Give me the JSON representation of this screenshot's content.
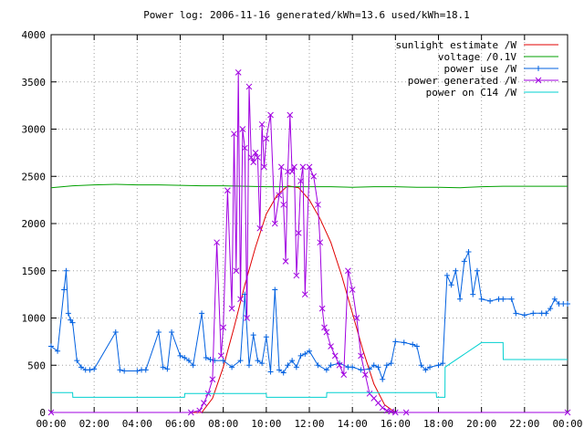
{
  "chart_data": {
    "type": "line",
    "title": "Power log: 2006-11-16 generated/kWh=13.6 used/kWh=18.1",
    "xlabel": "",
    "ylabel": "",
    "xlim": [
      0,
      24
    ],
    "ylim": [
      0,
      4000
    ],
    "x_ticks": [
      "00:00",
      "02:00",
      "04:00",
      "06:00",
      "08:00",
      "10:00",
      "12:00",
      "14:00",
      "16:00",
      "18:00",
      "20:00",
      "22:00",
      "00:00"
    ],
    "y_ticks": [
      "0",
      "500",
      "1000",
      "1500",
      "2000",
      "2500",
      "3000",
      "3500",
      "4000"
    ],
    "legend_position": "top-right",
    "grid": true,
    "series": [
      {
        "name": "sunlight estimate /W",
        "color": "#e00000",
        "marker": "none",
        "x": [
          0,
          7.0,
          7.5,
          8.0,
          8.5,
          9.0,
          9.5,
          10.0,
          10.5,
          11.0,
          11.5,
          12.0,
          12.5,
          13.0,
          13.5,
          14.0,
          14.5,
          15.0,
          15.5,
          16.0,
          24
        ],
        "y": [
          0,
          0,
          150,
          480,
          900,
          1350,
          1750,
          2100,
          2300,
          2400,
          2380,
          2250,
          2050,
          1800,
          1450,
          1050,
          650,
          300,
          80,
          0,
          0
        ]
      },
      {
        "name": "voltage /0.1V",
        "color": "#00a000",
        "marker": "none",
        "x": [
          0,
          1,
          2,
          3,
          4,
          5,
          6,
          7,
          8,
          9,
          10,
          11,
          12,
          13,
          14,
          15,
          16,
          17,
          18,
          19,
          20,
          21,
          22,
          23,
          24
        ],
        "y": [
          2380,
          2400,
          2410,
          2415,
          2410,
          2410,
          2405,
          2400,
          2400,
          2395,
          2390,
          2390,
          2390,
          2390,
          2385,
          2390,
          2390,
          2385,
          2385,
          2380,
          2390,
          2395,
          2395,
          2395,
          2395
        ]
      },
      {
        "name": "power use /W",
        "color": "#0060e0",
        "marker": "plus",
        "x": [
          0,
          0.3,
          0.6,
          0.7,
          0.8,
          0.9,
          1.0,
          1.2,
          1.4,
          1.6,
          1.8,
          2.0,
          3.0,
          3.2,
          3.4,
          4.0,
          4.2,
          4.4,
          5.0,
          5.2,
          5.4,
          5.6,
          6.0,
          6.2,
          6.4,
          6.6,
          7.0,
          7.2,
          7.4,
          7.6,
          8.0,
          8.4,
          8.8,
          9.0,
          9.2,
          9.4,
          9.6,
          9.8,
          10.0,
          10.2,
          10.4,
          10.6,
          10.8,
          11.0,
          11.2,
          11.4,
          11.6,
          11.8,
          12.0,
          12.4,
          12.8,
          13.0,
          13.4,
          13.8,
          14.0,
          14.4,
          14.8,
          15.0,
          15.2,
          15.4,
          15.6,
          15.8,
          16.0,
          16.4,
          16.8,
          17.0,
          17.2,
          17.4,
          17.6,
          18.0,
          18.2,
          18.4,
          18.6,
          18.8,
          19.0,
          19.2,
          19.4,
          19.6,
          19.8,
          20.0,
          20.4,
          20.8,
          21.0,
          21.4,
          21.6,
          22.0,
          22.4,
          22.8,
          23.0,
          23.2,
          23.4,
          23.6,
          23.8,
          24.0
        ],
        "y": [
          700,
          650,
          1300,
          1500,
          1050,
          980,
          950,
          550,
          480,
          450,
          450,
          460,
          850,
          450,
          440,
          440,
          450,
          450,
          850,
          480,
          460,
          850,
          600,
          580,
          550,
          500,
          1050,
          580,
          560,
          550,
          550,
          480,
          550,
          1250,
          500,
          820,
          550,
          520,
          800,
          430,
          1300,
          450,
          420,
          500,
          550,
          480,
          600,
          620,
          650,
          500,
          450,
          500,
          520,
          480,
          480,
          450,
          460,
          500,
          480,
          350,
          500,
          520,
          750,
          740,
          720,
          700,
          500,
          450,
          480,
          500,
          520,
          1450,
          1350,
          1500,
          1200,
          1600,
          1700,
          1250,
          1500,
          1200,
          1180,
          1200,
          1200,
          1200,
          1050,
          1030,
          1050,
          1050,
          1050,
          1100,
          1200,
          1150,
          1150,
          1150
        ]
      },
      {
        "name": "power generated /W",
        "color": "#a000e0",
        "marker": "cross",
        "x": [
          0,
          6.5,
          6.9,
          7.1,
          7.3,
          7.5,
          7.7,
          7.9,
          8.0,
          8.2,
          8.4,
          8.5,
          8.6,
          8.7,
          8.8,
          8.9,
          9.0,
          9.1,
          9.2,
          9.3,
          9.4,
          9.5,
          9.6,
          9.7,
          9.8,
          9.9,
          10.0,
          10.2,
          10.4,
          10.6,
          10.7,
          10.8,
          10.9,
          11.0,
          11.1,
          11.2,
          11.3,
          11.4,
          11.5,
          11.6,
          11.7,
          11.8,
          12.0,
          12.2,
          12.4,
          12.5,
          12.6,
          12.7,
          12.8,
          13.0,
          13.2,
          13.4,
          13.6,
          13.8,
          14.0,
          14.2,
          14.4,
          14.6,
          14.8,
          15.0,
          15.2,
          15.4,
          15.6,
          15.8,
          16.0,
          16.5,
          24
        ],
        "y": [
          0,
          0,
          20,
          100,
          200,
          350,
          1800,
          600,
          900,
          2350,
          1100,
          2950,
          1500,
          3600,
          1200,
          3000,
          2800,
          1000,
          3450,
          2700,
          2650,
          2750,
          2700,
          1950,
          3050,
          2600,
          2900,
          3150,
          2000,
          2300,
          2600,
          2200,
          1600,
          2550,
          3150,
          2550,
          2600,
          1450,
          1900,
          2450,
          2600,
          1250,
          2600,
          2500,
          2200,
          1800,
          1100,
          900,
          850,
          700,
          600,
          500,
          400,
          1500,
          1300,
          1000,
          600,
          400,
          200,
          150,
          100,
          50,
          20,
          10,
          0,
          0,
          0
        ]
      },
      {
        "name": "power on C14 /W",
        "color": "#00d0d0",
        "marker": "none",
        "x": [
          0,
          1.0,
          1.01,
          6.2,
          6.21,
          10.0,
          10.01,
          12.8,
          12.81,
          17.9,
          17.91,
          18.3,
          18.31,
          20.0,
          20.01,
          21.0,
          21.01,
          24.0
        ],
        "y": [
          210,
          210,
          160,
          160,
          200,
          200,
          160,
          160,
          210,
          210,
          160,
          160,
          480,
          740,
          740,
          740,
          560,
          560
        ]
      }
    ]
  }
}
